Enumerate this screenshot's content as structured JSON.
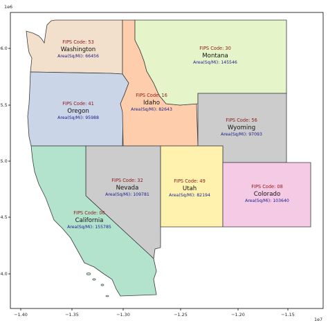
{
  "map": {
    "x_exponent": "1e7",
    "y_exponent": "1e6",
    "x_ticks": [
      "−1.40",
      "−1.35",
      "−1.30",
      "−1.25",
      "−1.20",
      "−1.15"
    ],
    "y_ticks": [
      "6.0",
      "5.5",
      "5.0",
      "4.5",
      "4.0"
    ],
    "states": [
      {
        "key": "washington",
        "name": "Washington",
        "fips": "FIPS Code: 53",
        "area": "Area(Sq/Mi): 66456",
        "fill": "#f2e0cc"
      },
      {
        "key": "oregon",
        "name": "Oregon",
        "fips": "FIPS Code: 41",
        "area": "Area(Sq/Mi): 95988",
        "fill": "#cbd5e8"
      },
      {
        "key": "idaho",
        "name": "Idaho",
        "fips": "FIPS Code: 16",
        "area": "Area(Sq/Mi): 82643",
        "fill": "#fdcdac"
      },
      {
        "key": "montana",
        "name": "Montana",
        "fips": "FIPS Code: 30",
        "area": "Area(Sq/Mi): 145546",
        "fill": "#e6f5c9"
      },
      {
        "key": "wyoming",
        "name": "Wyoming",
        "fips": "FIPS Code: 56",
        "area": "Area(Sq/Mi): 97093",
        "fill": "#cccccc"
      },
      {
        "key": "nevada",
        "name": "Nevada",
        "fips": "FIPS Code: 32",
        "area": "Area(Sq/Mi): 109781",
        "fill": "#cccccc"
      },
      {
        "key": "utah",
        "name": "Utah",
        "fips": "FIPS Code: 49",
        "area": "Area(Sq/Mi): 82194",
        "fill": "#fff2ae"
      },
      {
        "key": "colorado",
        "name": "Colorado",
        "fips": "FIPS Code: 08",
        "area": "Area(Sq/Mi): 103640",
        "fill": "#f4cae4"
      },
      {
        "key": "california",
        "name": "California",
        "fips": "FIPS Code: 06",
        "area": "Area(Sq/Mi): 155785",
        "fill": "#b3e2cd"
      }
    ]
  }
}
